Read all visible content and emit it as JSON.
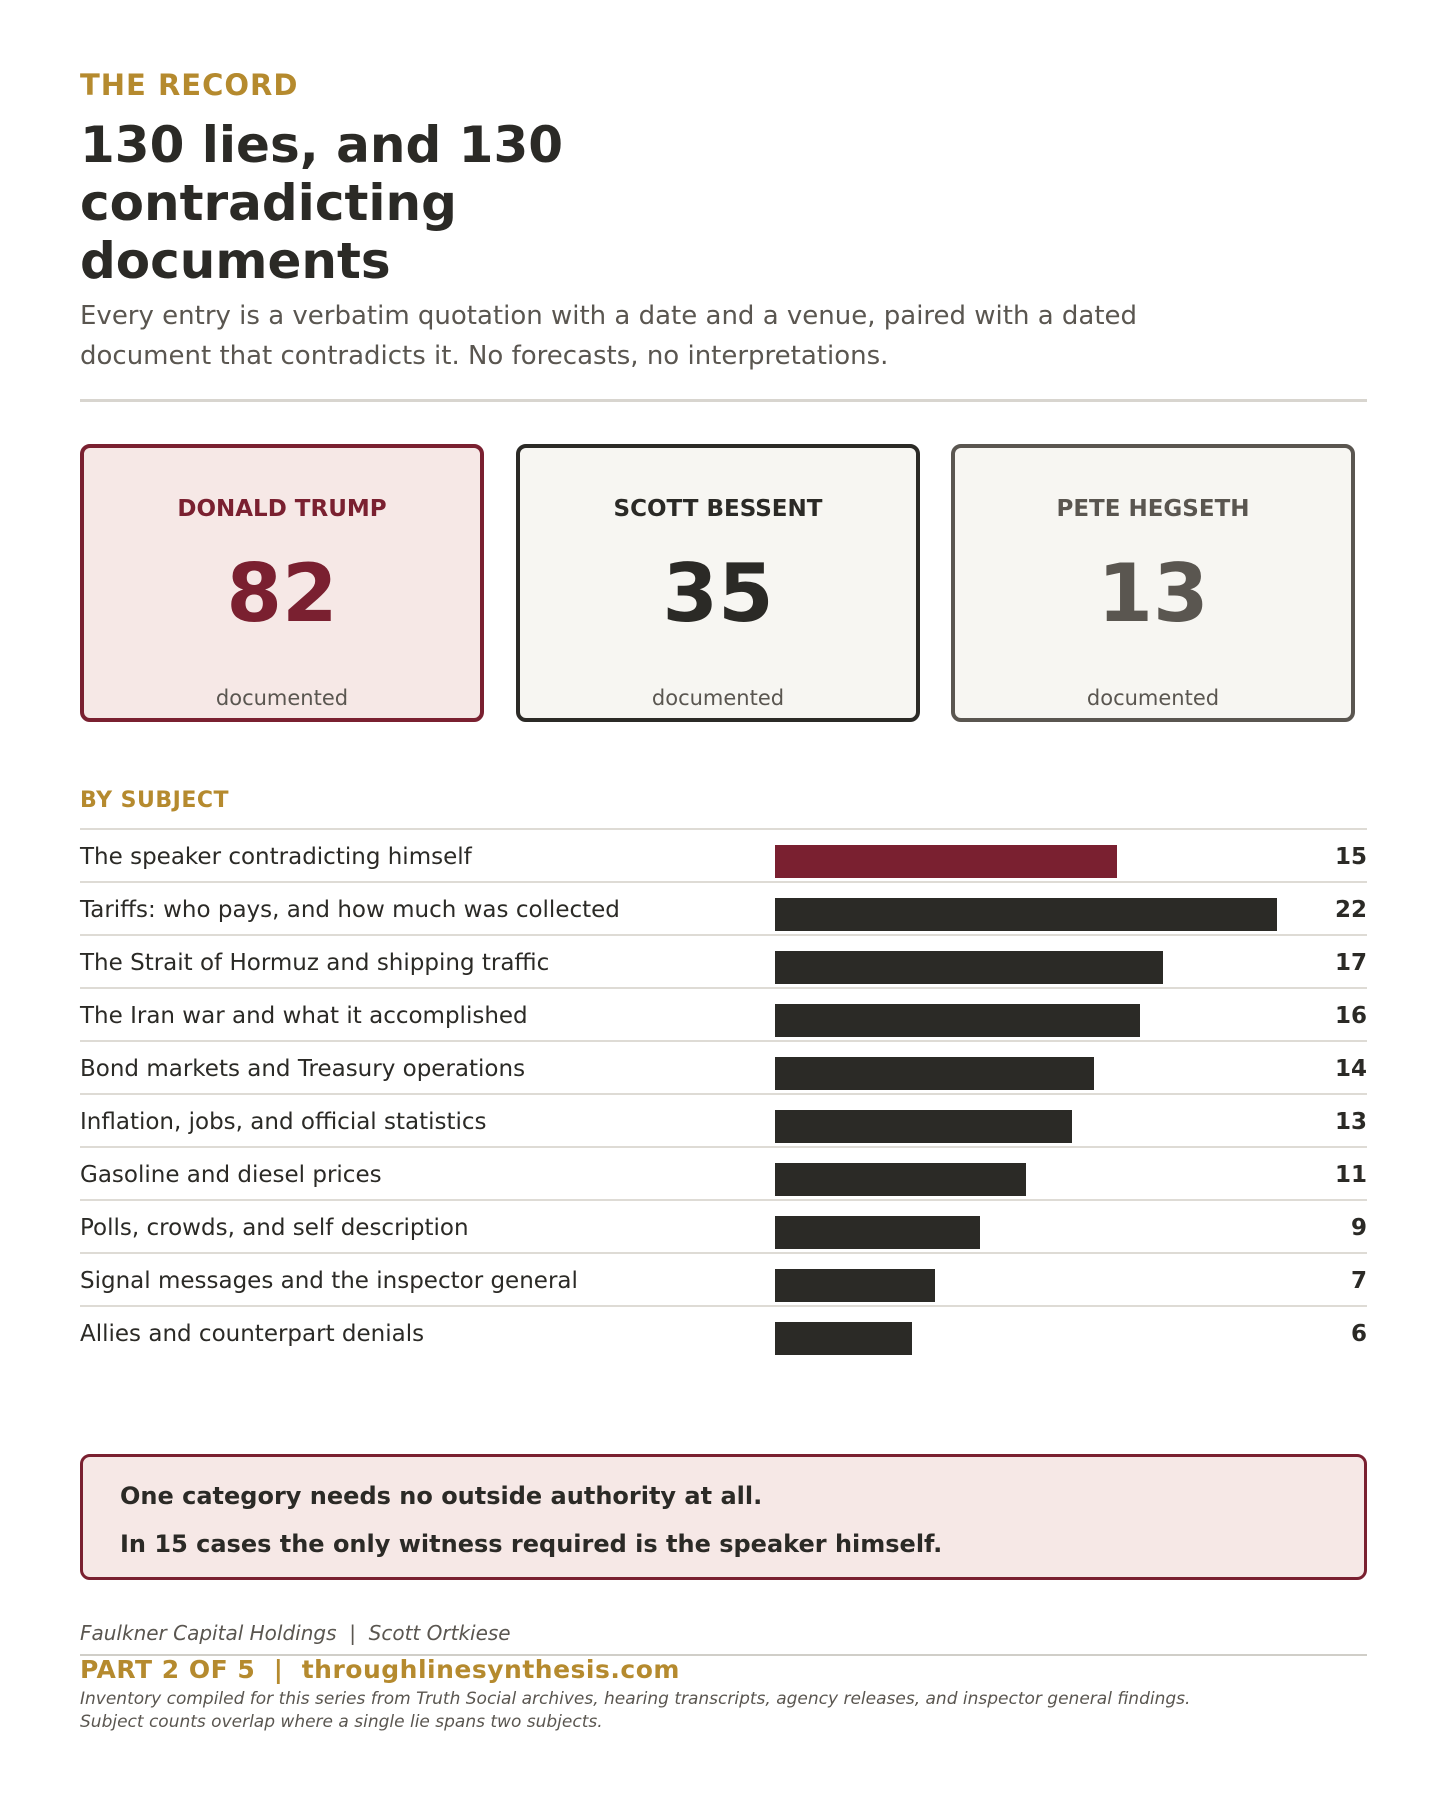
{
  "header": {
    "kicker": "THE RECORD",
    "title": "130 lies, and 130 contradicting documents",
    "subtitle": "Every entry is a verbatim quotation with a date and a venue, paired with a dated document that contradicts it. No forecasts, no interpretations."
  },
  "cards": [
    {
      "name": "DONALD TRUMP",
      "value": "82",
      "label": "documented",
      "color": "#7a2030"
    },
    {
      "name": "SCOTT BESSENT",
      "value": "35",
      "label": "documented",
      "color": "#2b2a26"
    },
    {
      "name": "PETE HEGSETH",
      "value": "13",
      "label": "documented",
      "color": "#5a5650"
    }
  ],
  "section_label": "BY SUBJECT",
  "chart_data": {
    "type": "bar",
    "orientation": "horizontal",
    "categories": [
      "The speaker contradicting himself",
      "Tariffs: who pays, and how much was collected",
      "The Strait of Hormuz and shipping traffic",
      "The Iran war and what it accomplished",
      "Bond markets and Treasury operations",
      "Inflation, jobs, and official statistics",
      "Gasoline and diesel prices",
      "Polls, crowds, and self description",
      "Signal messages and the inspector general",
      "Allies and counterpart denials"
    ],
    "values": [
      15,
      22,
      17,
      16,
      14,
      13,
      11,
      9,
      7,
      6
    ],
    "highlight_index": 0,
    "colors": {
      "highlight": "#7a2030",
      "default": "#2b2a26"
    },
    "xlim": [
      0,
      22
    ],
    "grid": false,
    "legend": "none"
  },
  "callout": {
    "line1": "One category needs no outside authority at all.",
    "line2": "In 15 cases the only witness required is the speaker himself."
  },
  "footer": {
    "byline": "Faulkner Capital Holdings  |  Scott Ortkiese",
    "series": "PART 2 OF 5  |  throughlinesynthesis.com",
    "note": "Inventory compiled for this series from Truth Social archives, hearing transcripts, agency releases, and inspector general findings. Subject counts overlap where a single lie spans two subjects."
  },
  "colors": {
    "accent_gold": "#b58a2e",
    "accent_red": "#7a2030",
    "ink": "#2b2a26"
  }
}
